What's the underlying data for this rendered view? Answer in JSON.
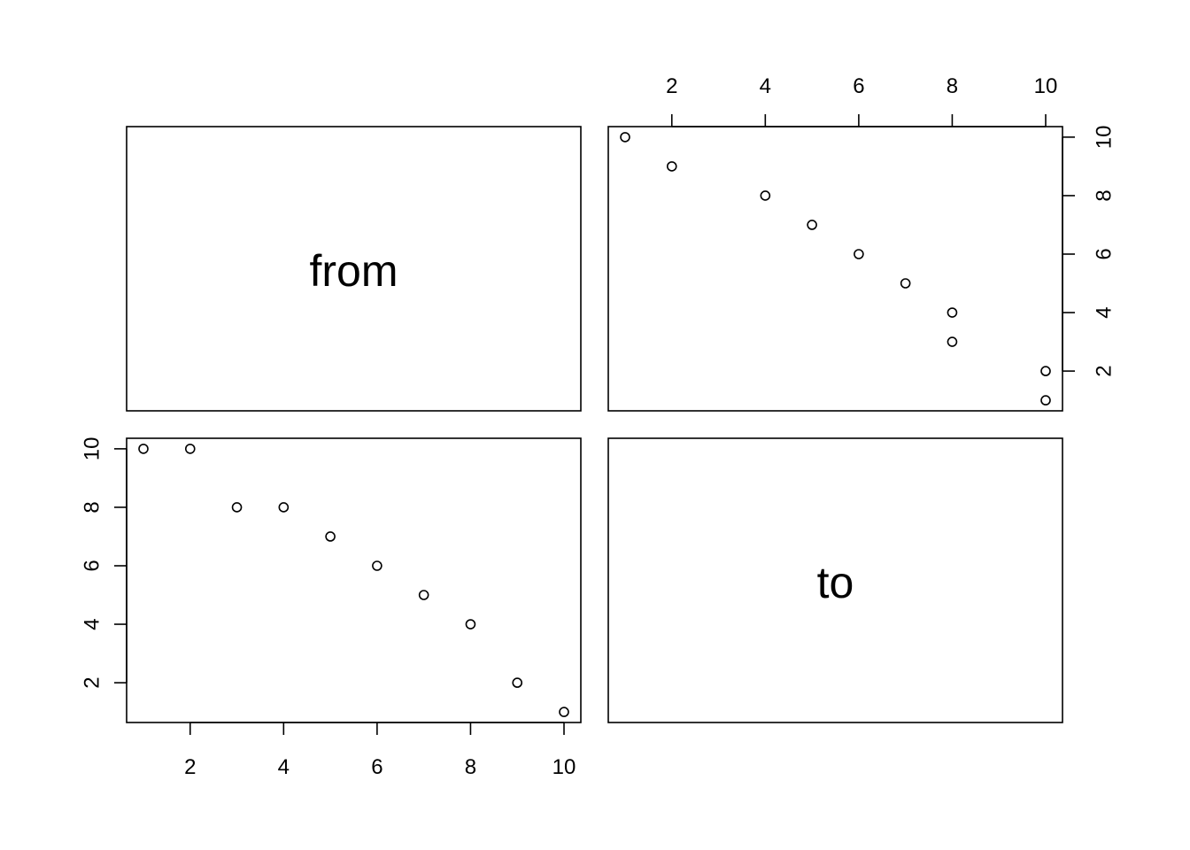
{
  "chart_data": {
    "type": "scatter",
    "kind": "pairs-plot-matrix",
    "variables": [
      "from",
      "to"
    ],
    "diagonal_labels": [
      "from",
      "to"
    ],
    "axis_ranges": {
      "from": [
        1,
        10
      ],
      "to": [
        1,
        10
      ]
    },
    "ticks": {
      "from": [
        "2",
        "4",
        "6",
        "8",
        "10"
      ],
      "to": [
        "2",
        "4",
        "6",
        "8",
        "10"
      ]
    },
    "grid": false,
    "legend": "none",
    "panels": [
      {
        "position": "top-right",
        "x_var": "to",
        "y_var": "from",
        "x_axis_side": "top",
        "y_axis_side": "right",
        "points": [
          {
            "x": 1,
            "y": 10
          },
          {
            "x": 2,
            "y": 9
          },
          {
            "x": 4,
            "y": 8
          },
          {
            "x": 5,
            "y": 7
          },
          {
            "x": 6,
            "y": 6
          },
          {
            "x": 7,
            "y": 5
          },
          {
            "x": 8,
            "y": 4
          },
          {
            "x": 8,
            "y": 3
          },
          {
            "x": 10,
            "y": 2
          },
          {
            "x": 10,
            "y": 1
          }
        ]
      },
      {
        "position": "bottom-left",
        "x_var": "from",
        "y_var": "to",
        "x_axis_side": "bottom",
        "y_axis_side": "left",
        "points": [
          {
            "x": 1,
            "y": 10
          },
          {
            "x": 2,
            "y": 10
          },
          {
            "x": 3,
            "y": 8
          },
          {
            "x": 4,
            "y": 8
          },
          {
            "x": 5,
            "y": 7
          },
          {
            "x": 6,
            "y": 6
          },
          {
            "x": 7,
            "y": 5
          },
          {
            "x": 8,
            "y": 4
          },
          {
            "x": 9,
            "y": 2
          },
          {
            "x": 10,
            "y": 1
          }
        ]
      }
    ],
    "colors": {
      "points": "#000000",
      "frame": "#000000",
      "background": "#ffffff"
    }
  }
}
